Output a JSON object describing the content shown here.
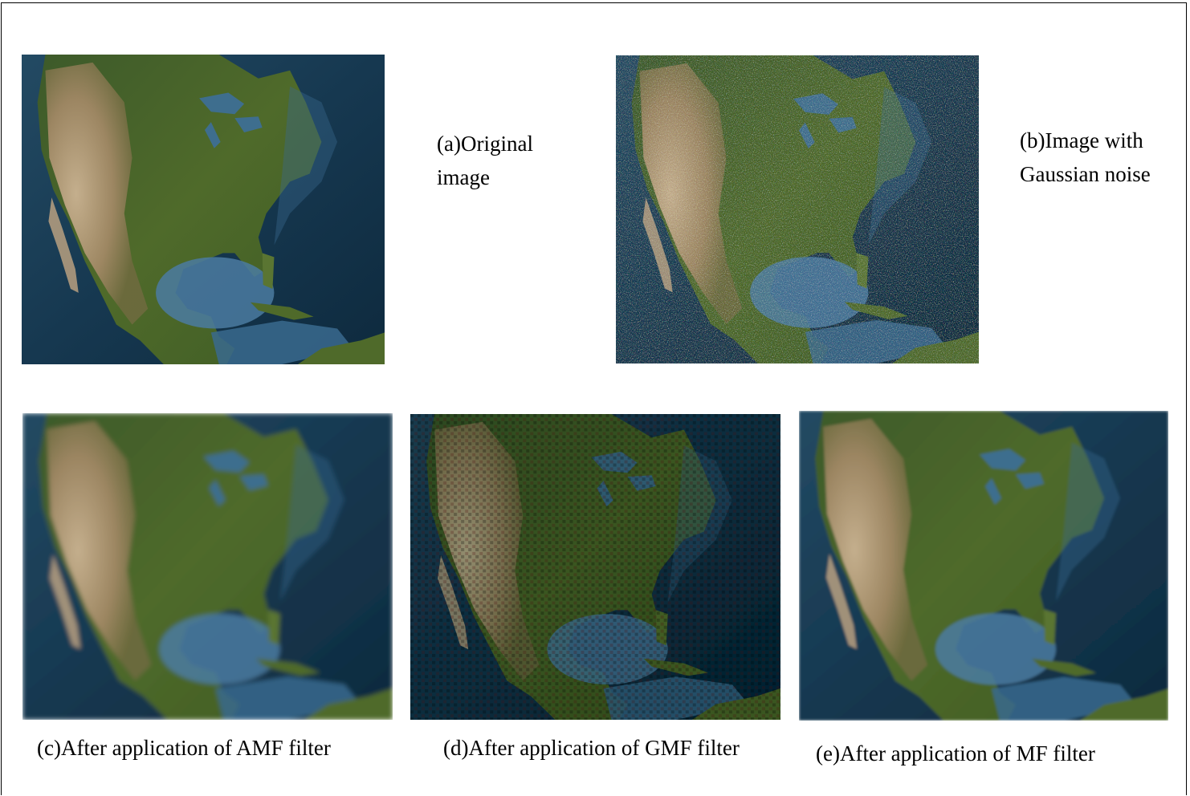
{
  "figure": {
    "panels": [
      {
        "id": "a",
        "caption_line1": "(a)Original",
        "caption_line2": "image",
        "effect": "original"
      },
      {
        "id": "b",
        "caption_line1": "(b)Image with",
        "caption_line2": "Gaussian noise",
        "effect": "gaussian-noise"
      },
      {
        "id": "c",
        "caption": "(c)After application of AMF filter",
        "effect": "blur"
      },
      {
        "id": "d",
        "caption": "(d)After application of GMF filter",
        "effect": "dark-pixelated"
      },
      {
        "id": "e",
        "caption": "(e)After application of MF filter",
        "effect": "soft"
      }
    ]
  },
  "colors": {
    "ocean_deep": "#0f2a3f",
    "ocean_shallow": "#4f7fa6",
    "land_green": "#4f6a2a",
    "land_desert": "#b59a78",
    "border": "#000000"
  }
}
